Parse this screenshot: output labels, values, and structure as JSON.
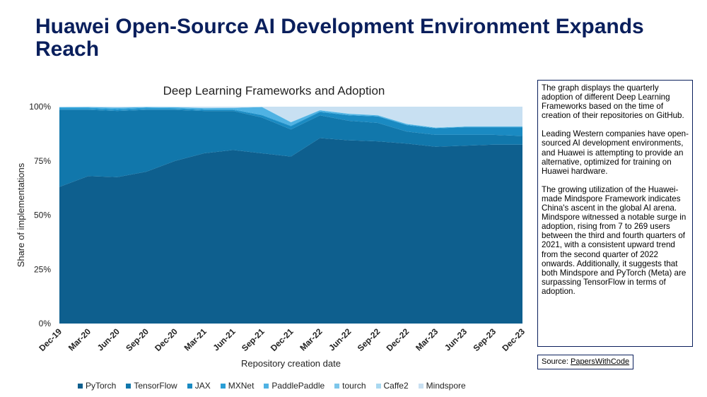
{
  "slide": {
    "title": "Huawei Open-Source AI Development Environment Expands Reach"
  },
  "description": {
    "paragraphs": [
      "The graph displays the quarterly adoption of different Deep Learning Frameworks based on the time of creation of their repositories on GitHub.",
      "Leading Western companies have open-sourced AI development environments, and Huawei is attempting to provide an alternative, optimized for training on Huawei hardware.",
      "The growing utilization of the Huawei-made Mindspore Framework indicates China's ascent in the global AI arena. Mindspore witnessed a notable surge in adoption, rising from 7 to 269 users between the third and fourth quarters of 2021, with a consistent upward trend from the second quarter of 2022 onwards. Additionally, it suggests that both Mindspore and PyTorch (Meta) are surpassing TensorFlow in terms of adoption."
    ]
  },
  "source": {
    "label": "Source:",
    "link_text": "PapersWithCode"
  },
  "chart_data": {
    "type": "area",
    "stacked": true,
    "title": "Deep Learning Frameworks and Adoption",
    "xlabel": "Repository creation date",
    "ylabel": "Share of implementations",
    "ylim": [
      0,
      100
    ],
    "y_ticks": [
      "0%",
      "25%",
      "50%",
      "75%",
      "100%"
    ],
    "grid": false,
    "legend_position": "bottom",
    "categories": [
      "Dec-19",
      "Mar-20",
      "Jun-20",
      "Sep-20",
      "Dec-20",
      "Mar-21",
      "Jun-21",
      "Sep-21",
      "Dec-21",
      "Mar-22",
      "Jun-22",
      "Sep-22",
      "Dec-22",
      "Mar-23",
      "Jun-23",
      "Sep-23",
      "Dec-23"
    ],
    "series": [
      {
        "name": "PyTorch",
        "color": "#0e5f8e",
        "values": [
          63,
          68,
          67.5,
          70,
          75,
          78.5,
          80,
          78.5,
          77,
          85.5,
          84.5,
          84,
          83,
          81.5,
          82,
          82.5,
          82.5
        ]
      },
      {
        "name": "TensorFlow",
        "color": "#1177ab",
        "values": [
          35.5,
          30.5,
          30.5,
          28.5,
          23.5,
          19.5,
          18,
          16.5,
          12.5,
          10.5,
          9,
          8.5,
          5.5,
          5.5,
          5,
          4.5,
          4
        ]
      },
      {
        "name": "JAX",
        "color": "#1a8ac2",
        "values": [
          0.5,
          0.5,
          0.5,
          0.5,
          0.5,
          0.5,
          0.5,
          1,
          1.5,
          1.5,
          2.5,
          3,
          3,
          3,
          3.5,
          3.5,
          4
        ]
      },
      {
        "name": "MXNet",
        "color": "#2a9ed6",
        "values": [
          0.5,
          0.5,
          0.5,
          0.5,
          0.3,
          0.3,
          0.3,
          0.3,
          0.3,
          0.3,
          0.2,
          0.2,
          0.2,
          0.2,
          0.2,
          0.2,
          0.2
        ]
      },
      {
        "name": "PaddlePaddle",
        "color": "#4fb2e3",
        "values": [
          0.2,
          0.3,
          0.5,
          0.3,
          0.4,
          0.5,
          0.6,
          3.5,
          1.5,
          0.5,
          0.5,
          0.3,
          0.3,
          0.1,
          0.1,
          0.1,
          0.1
        ]
      },
      {
        "name": "tourch",
        "color": "#7dc6ea",
        "values": [
          0.1,
          0.1,
          0.1,
          0.1,
          0.1,
          0.1,
          0.1,
          0.1,
          0.1,
          0.1,
          0.1,
          0.1,
          0.1,
          0.1,
          0.1,
          0.1,
          0.1
        ]
      },
      {
        "name": "Caffe2",
        "color": "#a9d8f0",
        "values": [
          0.1,
          0.1,
          0.1,
          0.1,
          0.1,
          0.1,
          0.1,
          0.1,
          0.1,
          0.1,
          0.1,
          0.1,
          0.1,
          0.1,
          0.1,
          0.1,
          0.1
        ]
      },
      {
        "name": "Mindspore",
        "color": "#c8e0f2",
        "values": [
          0.1,
          0,
          0.3,
          0,
          0.1,
          0.5,
          0.4,
          0,
          7,
          1.5,
          3.1,
          3.8,
          7.8,
          9.5,
          9,
          9.1,
          9
        ]
      }
    ]
  }
}
